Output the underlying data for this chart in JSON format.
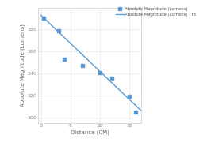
{
  "scatter_x": [
    0.5,
    3,
    4,
    7,
    10,
    12,
    15,
    16
  ],
  "scatter_y": [
    390,
    379,
    353,
    347,
    341,
    336,
    319,
    305
  ],
  "fit_x": [
    0,
    17
  ],
  "fit_y": [
    393,
    306
  ],
  "scatter_color": "#5b9bd5",
  "line_color": "#5b9bd5",
  "xlabel": "Distance (CM)",
  "ylabel": "Absolute Magnitude (Lumens)",
  "legend_scatter": "Absolute Magnitude (Lumens)",
  "legend_fit": "Absolute Magnitude (Lumens) - fit",
  "xlim": [
    -0.5,
    17
  ],
  "ylim": [
    295,
    400
  ],
  "yticks": [
    300,
    320,
    340,
    360,
    380
  ],
  "xticks": [
    0,
    5,
    10,
    15
  ],
  "bg_color": "#ffffff",
  "grid_color": "#e8e8e8"
}
